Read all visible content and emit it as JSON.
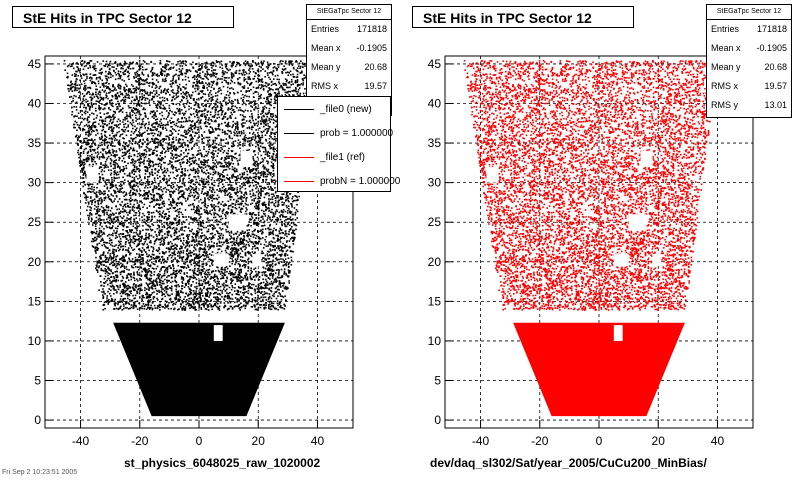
{
  "colors": {
    "left_series": "#000000",
    "right_series": "#ff0000"
  },
  "chart_data": [
    {
      "type": "scatter",
      "title": "StE Hits in TPC Sector 12",
      "xlabel": "st_physics_6048025_raw_1020002",
      "ylabel": "",
      "xlim": [
        -52,
        52
      ],
      "ylim": [
        -1,
        46
      ],
      "x_ticks": [
        -40,
        -20,
        0,
        20,
        40
      ],
      "y_ticks": [
        0,
        5,
        10,
        15,
        20,
        25,
        30,
        35,
        40,
        45
      ],
      "grid": true,
      "marker_color": "#000000",
      "stats": {
        "name": "StEGaTpc Sector 12",
        "rows": [
          {
            "label": "Entries",
            "value": "171818"
          },
          {
            "label": "Mean x",
            "value": "-0.1905"
          },
          {
            "label": "Mean y",
            "value": "20.68"
          },
          {
            "label": "RMS x",
            "value": "19.57"
          }
        ]
      },
      "legend": {
        "position": "top-right",
        "entries": [
          {
            "label": "_file0 (new)",
            "color": "#000000"
          },
          {
            "label": "prob = 1.000000",
            "color": "#000000"
          },
          {
            "label": "_file1 (ref)",
            "color": "#ff0000"
          },
          {
            "label": "probN = 1.000000",
            "color": "#ff0000"
          }
        ]
      },
      "regions": [
        {
          "y": [
            0.5,
            12.3
          ],
          "x_at_bottom": [
            -16,
            16
          ],
          "x_at_top": [
            -29,
            29
          ],
          "density": 1.0
        },
        {
          "y": [
            14.0,
            45.5
          ],
          "x_at_bottom": [
            -33,
            29
          ],
          "x_at_top": [
            -46,
            40
          ],
          "density": 0.55
        }
      ],
      "gaps": [
        {
          "x": [
            -38,
            -34
          ],
          "y": [
            30,
            32
          ]
        },
        {
          "x": [
            14,
            18
          ],
          "y": [
            32,
            34
          ]
        },
        {
          "x": [
            10,
            16
          ],
          "y": [
            24,
            26
          ]
        },
        {
          "x": [
            5,
            10
          ],
          "y": [
            19.5,
            21
          ]
        },
        {
          "x": [
            18,
            21
          ],
          "y": [
            19.5,
            21
          ]
        },
        {
          "x": [
            5,
            8
          ],
          "y": [
            10,
            12
          ]
        }
      ]
    },
    {
      "type": "scatter",
      "title": "StE Hits in TPC Sector 12",
      "xlabel": "dev/daq_sl302/Sat/year_2005/CuCu200_MinBias/",
      "ylabel": "",
      "xlim": [
        -52,
        52
      ],
      "ylim": [
        -1,
        46
      ],
      "x_ticks": [
        -40,
        -20,
        0,
        20,
        40
      ],
      "y_ticks": [
        0,
        5,
        10,
        15,
        20,
        25,
        30,
        35,
        40,
        45
      ],
      "grid": true,
      "marker_color": "#ff0000",
      "stats": {
        "name": "StEGaTpc Sector 12",
        "rows": [
          {
            "label": "Entries",
            "value": "171818"
          },
          {
            "label": "Mean x",
            "value": "-0.1905"
          },
          {
            "label": "Mean y",
            "value": "20.68"
          },
          {
            "label": "RMS x",
            "value": "19.57"
          },
          {
            "label": "RMS y",
            "value": "13.01"
          }
        ]
      },
      "regions": [
        {
          "y": [
            0.5,
            12.3
          ],
          "x_at_bottom": [
            -16,
            16
          ],
          "x_at_top": [
            -29,
            29
          ],
          "density": 1.0
        },
        {
          "y": [
            14.0,
            45.5
          ],
          "x_at_bottom": [
            -33,
            29
          ],
          "x_at_top": [
            -46,
            40
          ],
          "density": 0.55
        }
      ],
      "gaps": [
        {
          "x": [
            -38,
            -34
          ],
          "y": [
            30,
            32
          ]
        },
        {
          "x": [
            14,
            18
          ],
          "y": [
            32,
            34
          ]
        },
        {
          "x": [
            10,
            16
          ],
          "y": [
            24,
            26
          ]
        },
        {
          "x": [
            5,
            10
          ],
          "y": [
            19.5,
            21
          ]
        },
        {
          "x": [
            18,
            21
          ],
          "y": [
            19.5,
            21
          ]
        },
        {
          "x": [
            5,
            8
          ],
          "y": [
            10,
            12
          ]
        }
      ]
    }
  ],
  "footer": {
    "corner_text": "Fri Sep 2 10:23:51 2005"
  }
}
